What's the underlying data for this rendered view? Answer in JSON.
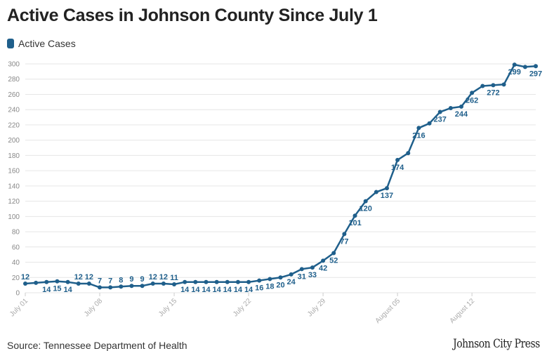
{
  "header": {
    "title": "Active Cases in Johnson County Since July 1"
  },
  "legend": {
    "label": "Active Cases"
  },
  "footer": {
    "source": "Source: Tennessee Department of Health",
    "brand": "Johnson City Press"
  },
  "colors": {
    "series": "#1f5f8b",
    "grid": "#e6e6e6",
    "axis_text": "#888888"
  },
  "chart_data": {
    "type": "line",
    "title": "Active Cases in Johnson County Since July 1",
    "xlabel": "",
    "ylabel": "",
    "ylim": [
      0,
      300
    ],
    "yticks": [
      0,
      20,
      40,
      60,
      80,
      100,
      120,
      140,
      160,
      180,
      200,
      220,
      240,
      260,
      280,
      300
    ],
    "x_tick_labels": [
      {
        "label": "July 01",
        "index": 0
      },
      {
        "label": "July 08",
        "index": 7
      },
      {
        "label": "July 15",
        "index": 14
      },
      {
        "label": "July 22",
        "index": 21
      },
      {
        "label": "July 29",
        "index": 28
      },
      {
        "label": "August 05",
        "index": 35
      },
      {
        "label": "August 12",
        "index": 42
      }
    ],
    "series": [
      {
        "name": "Active Cases",
        "values": [
          12,
          13,
          14,
          15,
          14,
          12,
          12,
          7,
          7,
          8,
          9,
          9,
          12,
          12,
          11,
          14,
          14,
          14,
          14,
          14,
          14,
          14,
          16,
          18,
          20,
          24,
          31,
          33,
          42,
          52,
          77,
          101,
          120,
          132,
          137,
          174,
          183,
          216,
          222,
          237,
          242,
          244,
          262,
          271,
          272,
          273,
          299,
          296,
          297
        ]
      }
    ],
    "data_labels": [
      {
        "index": 0,
        "text": "12",
        "pos": "above"
      },
      {
        "index": 2,
        "text": "14",
        "pos": "below"
      },
      {
        "index": 3,
        "text": "15",
        "pos": "below"
      },
      {
        "index": 4,
        "text": "14",
        "pos": "below"
      },
      {
        "index": 5,
        "text": "12",
        "pos": "above"
      },
      {
        "index": 6,
        "text": "12",
        "pos": "above"
      },
      {
        "index": 7,
        "text": "7",
        "pos": "above"
      },
      {
        "index": 8,
        "text": "7",
        "pos": "above"
      },
      {
        "index": 9,
        "text": "8",
        "pos": "above"
      },
      {
        "index": 10,
        "text": "9",
        "pos": "above"
      },
      {
        "index": 11,
        "text": "9",
        "pos": "above"
      },
      {
        "index": 12,
        "text": "12",
        "pos": "above"
      },
      {
        "index": 13,
        "text": "12",
        "pos": "above"
      },
      {
        "index": 14,
        "text": "11",
        "pos": "above"
      },
      {
        "index": 15,
        "text": "14",
        "pos": "below"
      },
      {
        "index": 16,
        "text": "14",
        "pos": "below"
      },
      {
        "index": 17,
        "text": "14",
        "pos": "below"
      },
      {
        "index": 18,
        "text": "14",
        "pos": "below"
      },
      {
        "index": 19,
        "text": "14",
        "pos": "below"
      },
      {
        "index": 20,
        "text": "14",
        "pos": "below"
      },
      {
        "index": 21,
        "text": "14",
        "pos": "below"
      },
      {
        "index": 22,
        "text": "16",
        "pos": "below"
      },
      {
        "index": 23,
        "text": "18",
        "pos": "below"
      },
      {
        "index": 24,
        "text": "20",
        "pos": "below"
      },
      {
        "index": 25,
        "text": "24",
        "pos": "below"
      },
      {
        "index": 26,
        "text": "31",
        "pos": "below"
      },
      {
        "index": 27,
        "text": "33",
        "pos": "below"
      },
      {
        "index": 28,
        "text": "42",
        "pos": "below"
      },
      {
        "index": 29,
        "text": "52",
        "pos": "below"
      },
      {
        "index": 30,
        "text": "77",
        "pos": "below"
      },
      {
        "index": 31,
        "text": "101",
        "pos": "below"
      },
      {
        "index": 32,
        "text": "120",
        "pos": "below"
      },
      {
        "index": 34,
        "text": "137",
        "pos": "below"
      },
      {
        "index": 35,
        "text": "174",
        "pos": "below"
      },
      {
        "index": 37,
        "text": "216",
        "pos": "below"
      },
      {
        "index": 39,
        "text": "237",
        "pos": "below"
      },
      {
        "index": 41,
        "text": "244",
        "pos": "below"
      },
      {
        "index": 42,
        "text": "262",
        "pos": "below"
      },
      {
        "index": 44,
        "text": "272",
        "pos": "below"
      },
      {
        "index": 46,
        "text": "299",
        "pos": "below"
      },
      {
        "index": 48,
        "text": "297",
        "pos": "below"
      }
    ]
  }
}
